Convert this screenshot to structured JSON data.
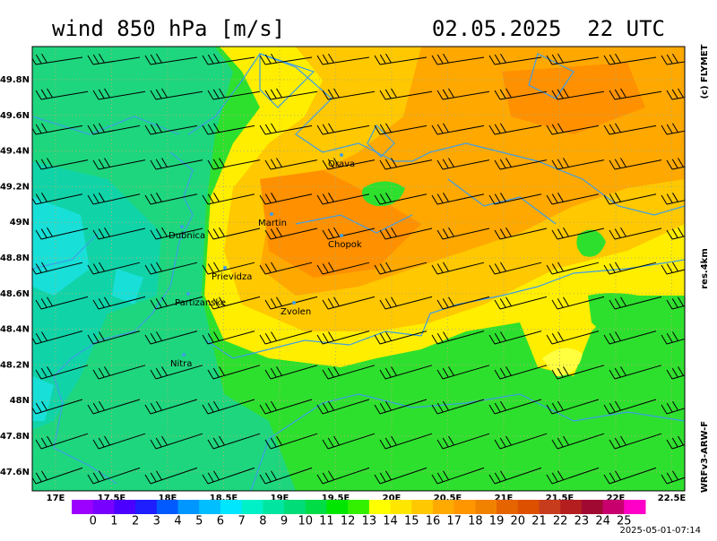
{
  "header": {
    "title": "wind 850 hPa [m/s]",
    "datetime": "02.05.2025  22 UTC"
  },
  "side_labels": {
    "copyright": "(c) FLYMET",
    "resolution": "res.4km",
    "model": "WRFv3-ARW-F"
  },
  "footer": {
    "timestamp": "2025-05-01-07:14"
  },
  "map": {
    "lat_labels": [
      "49.8N",
      "49.6N",
      "49.4N",
      "49.2N",
      "49N",
      "48.8N",
      "48.6N",
      "48.4N",
      "48.2N",
      "48N",
      "47.8N",
      "47.6N"
    ],
    "lon_labels": [
      "17E",
      "17.5E",
      "18E",
      "18.5E",
      "19E",
      "19.5E",
      "20E",
      "20.5E",
      "21E",
      "21.5E",
      "22E",
      "22.5E"
    ],
    "cities": [
      "Orava",
      "Martin",
      "Chopok",
      "Dubnica",
      "Prievidza",
      "Partizanske",
      "Zvolen",
      "Nitra"
    ]
  },
  "colorbar": {
    "labels": [
      0,
      1,
      2,
      3,
      4,
      5,
      6,
      7,
      8,
      9,
      10,
      11,
      12,
      13,
      14,
      15,
      16,
      17,
      18,
      19,
      20,
      21,
      22,
      23,
      24,
      25
    ],
    "colors": [
      "#9c00ff",
      "#7800ff",
      "#4b00ff",
      "#1e1eff",
      "#005aff",
      "#0096ff",
      "#00beff",
      "#00e6ff",
      "#00f0c8",
      "#00e6a0",
      "#00dc78",
      "#00dc46",
      "#00e600",
      "#32f000",
      "#ffff00",
      "#ffe600",
      "#ffc800",
      "#ffaa00",
      "#ff9600",
      "#f08200",
      "#e66400",
      "#dc5000",
      "#c83c1e",
      "#b41e1e",
      "#a00a32",
      "#c8006e",
      "#ff00c8"
    ]
  }
}
